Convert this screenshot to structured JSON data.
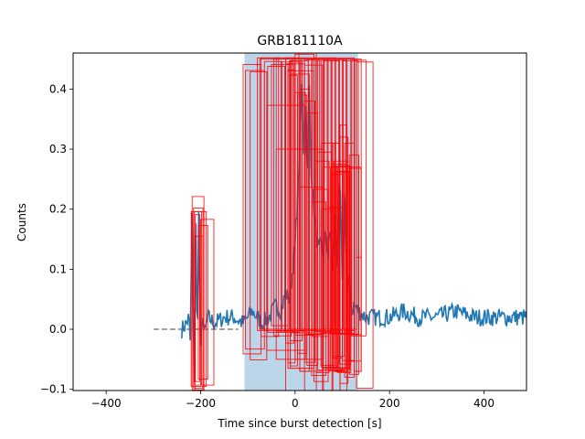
{
  "chart_data": {
    "type": "line",
    "title": "GRB181110A",
    "xlabel": "Time since burst detection [s]",
    "ylabel": "Counts",
    "xlim": [
      -470,
      490
    ],
    "ylim": [
      -0.102,
      0.46
    ],
    "grid": false,
    "xticks": [
      -400,
      -200,
      0,
      200,
      400
    ],
    "yticks": [
      -0.1,
      0.0,
      0.1,
      0.2,
      0.3,
      0.4
    ],
    "colors": {
      "lightcurve": "#1f77b4",
      "background_fit": "#808080",
      "bayesian_window": "#1f77b4",
      "bayesian_window_opacity": 0.3,
      "pulse_boxes": "#ff0000"
    },
    "background_fit": {
      "style": "dashed",
      "x": [
        -300,
        -120
      ],
      "y": [
        0.0,
        0.0
      ]
    },
    "bayesian_window": {
      "x0": -107,
      "x1": 133,
      "y0": -0.102,
      "y1": 0.46
    },
    "lightcurve_envelope": [
      [
        -240,
        0.0
      ],
      [
        -230,
        0.01
      ],
      [
        -225,
        0.02
      ],
      [
        -222,
        -0.02
      ],
      [
        -218,
        0.19
      ],
      [
        -214,
        -0.08
      ],
      [
        -210,
        0.17
      ],
      [
        -207,
        -0.05
      ],
      [
        -204,
        0.19
      ],
      [
        -200,
        -0.04
      ],
      [
        -196,
        0.03
      ],
      [
        -192,
        -0.01
      ],
      [
        -185,
        0.02
      ],
      [
        -170,
        0.01
      ],
      [
        -150,
        0.02
      ],
      [
        -130,
        0.02
      ],
      [
        -110,
        0.01
      ],
      [
        -90,
        0.03
      ],
      [
        -70,
        0.01
      ],
      [
        -55,
        0.02
      ],
      [
        -40,
        0.04
      ],
      [
        -30,
        0.03
      ],
      [
        -20,
        0.06
      ],
      [
        -12,
        0.05
      ],
      [
        -5,
        0.1
      ],
      [
        0,
        0.14
      ],
      [
        4,
        0.2
      ],
      [
        8,
        0.27
      ],
      [
        12,
        0.35
      ],
      [
        15,
        0.43
      ],
      [
        18,
        0.3
      ],
      [
        22,
        0.37
      ],
      [
        26,
        0.26
      ],
      [
        30,
        0.4
      ],
      [
        34,
        0.27
      ],
      [
        38,
        0.22
      ],
      [
        42,
        0.18
      ],
      [
        46,
        0.15
      ],
      [
        50,
        0.13
      ],
      [
        55,
        0.14
      ],
      [
        60,
        0.12
      ],
      [
        65,
        0.16
      ],
      [
        70,
        0.12
      ],
      [
        75,
        0.17
      ],
      [
        80,
        0.09
      ],
      [
        85,
        0.21
      ],
      [
        90,
        0.11
      ],
      [
        95,
        0.26
      ],
      [
        100,
        0.07
      ],
      [
        105,
        0.26
      ],
      [
        110,
        0.06
      ],
      [
        115,
        0.08
      ],
      [
        120,
        0.03
      ],
      [
        125,
        0.04
      ],
      [
        135,
        0.03
      ],
      [
        150,
        0.02
      ],
      [
        170,
        0.02
      ],
      [
        200,
        0.02
      ],
      [
        230,
        0.03
      ],
      [
        260,
        0.02
      ],
      [
        300,
        0.02
      ],
      [
        340,
        0.03
      ],
      [
        380,
        0.02
      ],
      [
        420,
        0.02
      ],
      [
        460,
        0.02
      ],
      [
        490,
        0.02
      ]
    ],
    "pulse_boxes": [
      {
        "x0": -218,
        "x1": -193,
        "y0": -0.101,
        "y1": 0.221
      },
      {
        "x0": -215,
        "x1": -195,
        "y0": -0.098,
        "y1": 0.202
      },
      {
        "x0": -213,
        "x1": -198,
        "y0": -0.093,
        "y1": 0.196
      },
      {
        "x0": -211,
        "x1": -202,
        "y0": -0.087,
        "y1": 0.191
      },
      {
        "x0": -220,
        "x1": -188,
        "y0": -0.095,
        "y1": 0.196
      },
      {
        "x0": -205,
        "x1": -185,
        "y0": -0.083,
        "y1": 0.173
      },
      {
        "x0": -200,
        "x1": -172,
        "y0": -0.093,
        "y1": 0.183
      },
      {
        "x0": -212,
        "x1": -195,
        "y0": -0.127,
        "y1": 0.155
      },
      {
        "x0": -110,
        "x1": -72,
        "y0": -0.041,
        "y1": 0.441
      },
      {
        "x0": -105,
        "x1": -65,
        "y0": -0.033,
        "y1": 0.431
      },
      {
        "x0": -95,
        "x1": -60,
        "y0": -0.051,
        "y1": 0.429
      },
      {
        "x0": -72,
        "x1": -35,
        "y0": -0.012,
        "y1": 0.452
      },
      {
        "x0": -65,
        "x1": -28,
        "y0": 0.0,
        "y1": 0.446
      },
      {
        "x0": -58,
        "x1": -22,
        "y0": -0.005,
        "y1": 0.438
      },
      {
        "x0": -50,
        "x1": -15,
        "y0": 0.006,
        "y1": 0.441
      },
      {
        "x0": -45,
        "x1": -8,
        "y0": -0.011,
        "y1": 0.45
      },
      {
        "x0": -40,
        "x1": 0,
        "y0": -0.003,
        "y1": 0.452
      },
      {
        "x0": -30,
        "x1": 10,
        "y0": -0.005,
        "y1": 0.445
      },
      {
        "x0": -20,
        "x1": 20,
        "y0": -0.003,
        "y1": 0.442
      },
      {
        "x0": -12,
        "x1": 28,
        "y0": 0.0,
        "y1": 0.447
      },
      {
        "x0": -5,
        "x1": 35,
        "y0": -0.006,
        "y1": 0.45
      },
      {
        "x0": 0,
        "x1": 40,
        "y0": -0.01,
        "y1": 0.458
      },
      {
        "x0": 8,
        "x1": 45,
        "y0": 0.0,
        "y1": 0.46
      },
      {
        "x0": 12,
        "x1": 48,
        "y0": -0.002,
        "y1": 0.45
      },
      {
        "x0": 20,
        "x1": 55,
        "y0": -0.009,
        "y1": 0.448
      },
      {
        "x0": 28,
        "x1": 62,
        "y0": -0.008,
        "y1": 0.45
      },
      {
        "x0": 36,
        "x1": 70,
        "y0": -0.012,
        "y1": 0.45
      },
      {
        "x0": 44,
        "x1": 78,
        "y0": -0.004,
        "y1": 0.448
      },
      {
        "x0": 52,
        "x1": 86,
        "y0": -0.007,
        "y1": 0.452
      },
      {
        "x0": 60,
        "x1": 94,
        "y0": -0.005,
        "y1": 0.447
      },
      {
        "x0": 68,
        "x1": 102,
        "y0": 0.0,
        "y1": 0.45
      },
      {
        "x0": 76,
        "x1": 110,
        "y0": -0.008,
        "y1": 0.448
      },
      {
        "x0": 84,
        "x1": 118,
        "y0": -0.006,
        "y1": 0.45
      },
      {
        "x0": 92,
        "x1": 126,
        "y0": -0.007,
        "y1": 0.45
      },
      {
        "x0": 100,
        "x1": 134,
        "y0": -0.008,
        "y1": 0.447
      },
      {
        "x0": 108,
        "x1": 140,
        "y0": -0.009,
        "y1": 0.45
      },
      {
        "x0": 120,
        "x1": 150,
        "y0": -0.011,
        "y1": 0.448
      },
      {
        "x0": 130,
        "x1": 165,
        "y0": -0.098,
        "y1": 0.445
      },
      {
        "x0": -80,
        "x1": 125,
        "y0": -0.002,
        "y1": 0.452
      },
      {
        "x0": -75,
        "x1": 130,
        "y0": 0.0,
        "y1": 0.45
      },
      {
        "x0": -10,
        "x1": 15,
        "y0": -0.019,
        "y1": 0.447
      },
      {
        "x0": -20,
        "x1": -2,
        "y0": -0.023,
        "y1": 0.441
      },
      {
        "x0": -15,
        "x1": 0,
        "y0": -0.056,
        "y1": 0.432
      },
      {
        "x0": -10,
        "x1": 5,
        "y0": -0.061,
        "y1": 0.423
      },
      {
        "x0": 0,
        "x1": 22,
        "y0": -0.05,
        "y1": 0.394
      },
      {
        "x0": 5,
        "x1": 25,
        "y0": -0.04,
        "y1": 0.39
      },
      {
        "x0": 10,
        "x1": 30,
        "y0": -0.07,
        "y1": 0.4
      },
      {
        "x0": 20,
        "x1": 42,
        "y0": -0.055,
        "y1": 0.38
      },
      {
        "x0": 25,
        "x1": 48,
        "y0": -0.06,
        "y1": 0.36
      },
      {
        "x0": -60,
        "x1": 20,
        "y0": -0.035,
        "y1": 0.373
      },
      {
        "x0": -40,
        "x1": 60,
        "y0": -0.05,
        "y1": 0.3
      },
      {
        "x0": 10,
        "x1": 58,
        "y0": -0.07,
        "y1": 0.237
      },
      {
        "x0": 35,
        "x1": 65,
        "y0": -0.077,
        "y1": 0.212
      },
      {
        "x0": 40,
        "x1": 70,
        "y0": -0.087,
        "y1": 0.233
      },
      {
        "x0": 45,
        "x1": 72,
        "y0": -0.072,
        "y1": 0.28
      },
      {
        "x0": 48,
        "x1": 78,
        "y0": -0.068,
        "y1": 0.295
      },
      {
        "x0": 55,
        "x1": 85,
        "y0": -0.06,
        "y1": 0.31
      },
      {
        "x0": 58,
        "x1": 88,
        "y0": -0.065,
        "y1": 0.27
      },
      {
        "x0": 55,
        "x1": 92,
        "y0": -0.063,
        "y1": 0.2
      },
      {
        "x0": 70,
        "x1": 100,
        "y0": -0.069,
        "y1": 0.203
      },
      {
        "x0": 75,
        "x1": 105,
        "y0": -0.068,
        "y1": 0.27
      },
      {
        "x0": 80,
        "x1": 108,
        "y0": -0.064,
        "y1": 0.275
      },
      {
        "x0": 82,
        "x1": 112,
        "y0": -0.07,
        "y1": 0.28
      },
      {
        "x0": 86,
        "x1": 116,
        "y0": -0.067,
        "y1": 0.272
      },
      {
        "x0": 90,
        "x1": 118,
        "y0": -0.072,
        "y1": 0.272
      },
      {
        "x0": 78,
        "x1": 100,
        "y0": -0.048,
        "y1": 0.258
      },
      {
        "x0": 82,
        "x1": 104,
        "y0": -0.045,
        "y1": 0.262
      },
      {
        "x0": 86,
        "x1": 110,
        "y0": -0.071,
        "y1": 0.262
      },
      {
        "x0": 90,
        "x1": 114,
        "y0": -0.065,
        "y1": 0.263
      },
      {
        "x0": 94,
        "x1": 118,
        "y0": -0.058,
        "y1": 0.262
      },
      {
        "x0": 100,
        "x1": 125,
        "y0": -0.052,
        "y1": 0.27
      },
      {
        "x0": 110,
        "x1": 140,
        "y0": -0.053,
        "y1": 0.268
      },
      {
        "x0": 130,
        "x1": 140,
        "y0": -0.07,
        "y1": 0.12
      },
      {
        "x0": 95,
        "x1": 110,
        "y0": -0.109,
        "y1": 0.34
      },
      {
        "x0": 95,
        "x1": 112,
        "y0": -0.09,
        "y1": 0.32
      },
      {
        "x0": 80,
        "x1": 95,
        "y0": -0.106,
        "y1": 0.31
      },
      {
        "x0": 105,
        "x1": 125,
        "y0": -0.08,
        "y1": 0.31
      },
      {
        "x0": 115,
        "x1": 135,
        "y0": -0.075,
        "y1": 0.29
      },
      {
        "x0": 125,
        "x1": 140,
        "y0": -0.07,
        "y1": 0.27
      },
      {
        "x0": -20,
        "x1": 45,
        "y0": -0.105,
        "y1": 0.452
      },
      {
        "x0": -15,
        "x1": 40,
        "y0": -0.065,
        "y1": 0.43
      },
      {
        "x0": -10,
        "x1": 30,
        "y0": -0.065,
        "y1": 0.425
      },
      {
        "x0": 20,
        "x1": 58,
        "y0": -0.11,
        "y1": 0.44
      },
      {
        "x0": 60,
        "x1": 78,
        "y0": -0.112,
        "y1": 0.45
      }
    ]
  }
}
